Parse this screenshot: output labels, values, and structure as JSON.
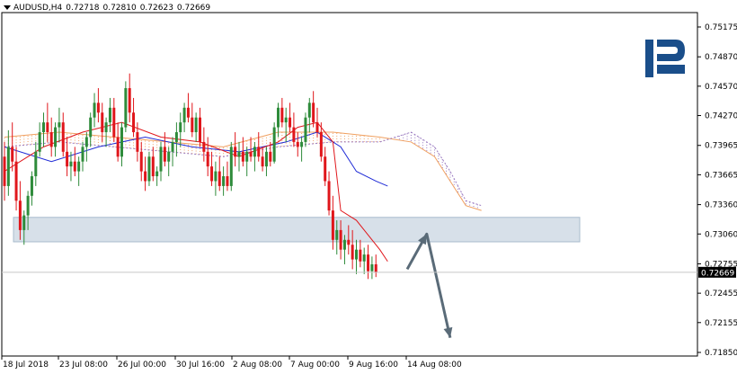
{
  "header": {
    "symbol": "AUDUSD,H4",
    "open": "0.72718",
    "high": "0.72810",
    "low": "0.72623",
    "close": "0.72669"
  },
  "colors": {
    "bull": "#2e8b3a",
    "bear": "#e0161b",
    "tenkan": "#e0161b",
    "kijun": "#1f2bd6",
    "cloud": "#f0a060",
    "cloud_b": "#9a7ac0",
    "zone": "#c9d6e2",
    "arrow": "#5a6b78",
    "logo": "#1a4e8a"
  },
  "logo": {
    "name": "roboforex-logo-icon",
    "text": "R"
  },
  "chart_data": {
    "type": "candlestick",
    "y_ticks": [
      "0.75175",
      "0.74870",
      "0.74570",
      "0.74270",
      "0.73965",
      "0.73665",
      "0.73360",
      "0.73060",
      "0.72755",
      "0.72455",
      "0.72155",
      "0.71850"
    ],
    "ylim": [
      0.7185,
      0.75175
    ],
    "x_labels": [
      "18 Jul 2018",
      "23 Jul 08:00",
      "26 Jul 00:00",
      "30 Jul 16:00",
      "2 Aug 08:00",
      "7 Aug 00:00",
      "9 Aug 16:00",
      "14 Aug 08:00"
    ],
    "current_price": "0.72669",
    "support_zone": [
      0.7298,
      0.7323
    ],
    "forecast_path": [
      {
        "bar": 103,
        "price": 0.727
      },
      {
        "bar": 108,
        "price": 0.7306
      },
      {
        "bar": 114,
        "price": 0.72
      }
    ],
    "candles": [
      [
        0.7385,
        0.74,
        0.734,
        0.7355
      ],
      [
        0.7355,
        0.7412,
        0.7345,
        0.7395
      ],
      [
        0.7395,
        0.742,
        0.737,
        0.738
      ],
      [
        0.738,
        0.7395,
        0.733,
        0.734
      ],
      [
        0.734,
        0.736,
        0.73,
        0.731
      ],
      [
        0.731,
        0.733,
        0.7295,
        0.7325
      ],
      [
        0.7325,
        0.735,
        0.731,
        0.7345
      ],
      [
        0.7345,
        0.737,
        0.7335,
        0.7365
      ],
      [
        0.7365,
        0.74,
        0.7355,
        0.739
      ],
      [
        0.739,
        0.742,
        0.7385,
        0.741
      ],
      [
        0.741,
        0.743,
        0.7395,
        0.742
      ],
      [
        0.742,
        0.744,
        0.74,
        0.741
      ],
      [
        0.741,
        0.7425,
        0.7385,
        0.7395
      ],
      [
        0.7395,
        0.742,
        0.7385,
        0.7415
      ],
      [
        0.7415,
        0.7435,
        0.74,
        0.742
      ],
      [
        0.742,
        0.743,
        0.7385,
        0.739
      ],
      [
        0.739,
        0.7405,
        0.7365,
        0.7375
      ],
      [
        0.7375,
        0.739,
        0.736,
        0.738
      ],
      [
        0.738,
        0.7395,
        0.7365,
        0.737
      ],
      [
        0.737,
        0.7385,
        0.7355,
        0.738
      ],
      [
        0.738,
        0.74,
        0.737,
        0.7395
      ],
      [
        0.7395,
        0.741,
        0.738,
        0.7405
      ],
      [
        0.7405,
        0.743,
        0.7395,
        0.7425
      ],
      [
        0.7425,
        0.745,
        0.7415,
        0.744
      ],
      [
        0.744,
        0.7455,
        0.742,
        0.743
      ],
      [
        0.743,
        0.744,
        0.74,
        0.741
      ],
      [
        0.741,
        0.7425,
        0.7395,
        0.742
      ],
      [
        0.742,
        0.7445,
        0.741,
        0.7435
      ],
      [
        0.7435,
        0.7445,
        0.74,
        0.7405
      ],
      [
        0.7405,
        0.742,
        0.738,
        0.7385
      ],
      [
        0.7385,
        0.742,
        0.7375,
        0.7415
      ],
      [
        0.7415,
        0.7462,
        0.741,
        0.7455
      ],
      [
        0.7455,
        0.747,
        0.742,
        0.743
      ],
      [
        0.743,
        0.7445,
        0.7405,
        0.741
      ],
      [
        0.741,
        0.742,
        0.738,
        0.739
      ],
      [
        0.739,
        0.74,
        0.736,
        0.737
      ],
      [
        0.737,
        0.7385,
        0.735,
        0.736
      ],
      [
        0.736,
        0.739,
        0.7355,
        0.7385
      ],
      [
        0.7385,
        0.7395,
        0.736,
        0.7365
      ],
      [
        0.7365,
        0.7375,
        0.7355,
        0.737
      ],
      [
        0.737,
        0.74,
        0.736,
        0.7395
      ],
      [
        0.7395,
        0.741,
        0.7375,
        0.738
      ],
      [
        0.738,
        0.7395,
        0.7365,
        0.739
      ],
      [
        0.739,
        0.7405,
        0.7375,
        0.74
      ],
      [
        0.74,
        0.742,
        0.7385,
        0.741
      ],
      [
        0.741,
        0.743,
        0.7395,
        0.742
      ],
      [
        0.742,
        0.744,
        0.741,
        0.7435
      ],
      [
        0.7435,
        0.745,
        0.742,
        0.7425
      ],
      [
        0.7425,
        0.744,
        0.7405,
        0.741
      ],
      [
        0.741,
        0.743,
        0.74,
        0.7425
      ],
      [
        0.7425,
        0.7435,
        0.7395,
        0.74
      ],
      [
        0.74,
        0.7415,
        0.738,
        0.739
      ],
      [
        0.739,
        0.7405,
        0.7365,
        0.7375
      ],
      [
        0.7375,
        0.739,
        0.7355,
        0.736
      ],
      [
        0.736,
        0.738,
        0.7345,
        0.737
      ],
      [
        0.737,
        0.7385,
        0.735,
        0.7355
      ],
      [
        0.7355,
        0.7375,
        0.7345,
        0.7365
      ],
      [
        0.7365,
        0.738,
        0.735,
        0.7355
      ],
      [
        0.7355,
        0.74,
        0.735,
        0.7395
      ],
      [
        0.7395,
        0.741,
        0.7375,
        0.7385
      ],
      [
        0.7385,
        0.74,
        0.737,
        0.739
      ],
      [
        0.739,
        0.7405,
        0.7375,
        0.738
      ],
      [
        0.738,
        0.7395,
        0.7365,
        0.739
      ],
      [
        0.739,
        0.7405,
        0.738,
        0.7385
      ],
      [
        0.7385,
        0.74,
        0.737,
        0.7395
      ],
      [
        0.7395,
        0.741,
        0.738,
        0.7385
      ],
      [
        0.7385,
        0.7395,
        0.737,
        0.7375
      ],
      [
        0.7375,
        0.7395,
        0.7365,
        0.739
      ],
      [
        0.739,
        0.74,
        0.7375,
        0.738
      ],
      [
        0.738,
        0.742,
        0.7378,
        0.7415
      ],
      [
        0.7415,
        0.744,
        0.7405,
        0.7435
      ],
      [
        0.7435,
        0.7445,
        0.7415,
        0.742
      ],
      [
        0.742,
        0.7435,
        0.74,
        0.7425
      ],
      [
        0.7425,
        0.744,
        0.741,
        0.7415
      ],
      [
        0.7415,
        0.743,
        0.7395,
        0.74
      ],
      [
        0.74,
        0.741,
        0.7385,
        0.7395
      ],
      [
        0.7395,
        0.7405,
        0.738,
        0.74
      ],
      [
        0.74,
        0.743,
        0.7395,
        0.7425
      ],
      [
        0.7425,
        0.7445,
        0.741,
        0.744
      ],
      [
        0.744,
        0.7452,
        0.7415,
        0.742
      ],
      [
        0.742,
        0.7435,
        0.7405,
        0.741
      ],
      [
        0.741,
        0.742,
        0.738,
        0.7385
      ],
      [
        0.7385,
        0.7395,
        0.7355,
        0.736
      ],
      [
        0.736,
        0.737,
        0.7325,
        0.733
      ],
      [
        0.733,
        0.7345,
        0.729,
        0.73
      ],
      [
        0.73,
        0.732,
        0.7285,
        0.731
      ],
      [
        0.731,
        0.732,
        0.728,
        0.729
      ],
      [
        0.729,
        0.7305,
        0.7275,
        0.73
      ],
      [
        0.73,
        0.7315,
        0.7285,
        0.7295
      ],
      [
        0.7295,
        0.731,
        0.727,
        0.728
      ],
      [
        0.728,
        0.73,
        0.7265,
        0.729
      ],
      [
        0.729,
        0.73,
        0.7272,
        0.7278
      ],
      [
        0.7278,
        0.7292,
        0.7265,
        0.7285
      ],
      [
        0.7285,
        0.7295,
        0.726,
        0.7268
      ],
      [
        0.7268,
        0.7283,
        0.726,
        0.7275
      ],
      [
        0.7275,
        0.7285,
        0.7262,
        0.7267
      ]
    ],
    "tenkan_line": [
      [
        0,
        0.737
      ],
      [
        10,
        0.7395
      ],
      [
        20,
        0.741
      ],
      [
        30,
        0.742
      ],
      [
        40,
        0.7405
      ],
      [
        50,
        0.74
      ],
      [
        60,
        0.7385
      ],
      [
        70,
        0.74
      ],
      [
        75,
        0.7415
      ],
      [
        80,
        0.742
      ],
      [
        84,
        0.74
      ],
      [
        86,
        0.733
      ],
      [
        90,
        0.732
      ],
      [
        96,
        0.729
      ],
      [
        98,
        0.7278
      ]
    ],
    "kijun_line": [
      [
        0,
        0.7395
      ],
      [
        12,
        0.738
      ],
      [
        24,
        0.7395
      ],
      [
        36,
        0.7405
      ],
      [
        48,
        0.7395
      ],
      [
        60,
        0.739
      ],
      [
        72,
        0.74
      ],
      [
        80,
        0.741
      ],
      [
        86,
        0.7395
      ],
      [
        90,
        0.737
      ],
      [
        95,
        0.736
      ],
      [
        98,
        0.7355
      ]
    ],
    "cloud_points": [
      [
        0,
        0.7395,
        0.7405
      ],
      [
        14,
        0.74,
        0.741
      ],
      [
        28,
        0.7395,
        0.7405
      ],
      [
        42,
        0.739,
        0.74
      ],
      [
        56,
        0.7385,
        0.7395
      ],
      [
        70,
        0.7395,
        0.741
      ],
      [
        84,
        0.74,
        0.741
      ],
      [
        96,
        0.74,
        0.7405
      ],
      [
        104,
        0.741,
        0.74
      ],
      [
        110,
        0.7395,
        0.7385
      ],
      [
        114,
        0.737,
        0.736
      ],
      [
        118,
        0.734,
        0.7335
      ],
      [
        122,
        0.7335,
        0.733
      ]
    ]
  }
}
